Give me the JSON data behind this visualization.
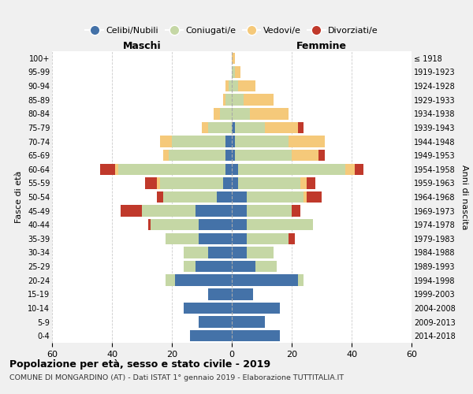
{
  "age_groups": [
    "100+",
    "95-99",
    "90-94",
    "85-89",
    "80-84",
    "75-79",
    "70-74",
    "65-69",
    "60-64",
    "55-59",
    "50-54",
    "45-49",
    "40-44",
    "35-39",
    "30-34",
    "25-29",
    "20-24",
    "15-19",
    "10-14",
    "5-9",
    "0-4"
  ],
  "birth_years": [
    "≤ 1918",
    "1919-1923",
    "1924-1928",
    "1929-1933",
    "1934-1938",
    "1939-1943",
    "1944-1948",
    "1949-1953",
    "1954-1958",
    "1959-1963",
    "1964-1968",
    "1969-1973",
    "1974-1978",
    "1979-1983",
    "1984-1988",
    "1989-1993",
    "1994-1998",
    "1999-2003",
    "2004-2008",
    "2009-2013",
    "2014-2018"
  ],
  "maschi": {
    "celibi": [
      0,
      0,
      0,
      0,
      0,
      0,
      2,
      2,
      2,
      3,
      5,
      12,
      11,
      11,
      8,
      12,
      19,
      8,
      16,
      11,
      14
    ],
    "coniugati": [
      0,
      0,
      1,
      2,
      4,
      8,
      18,
      19,
      36,
      21,
      18,
      18,
      16,
      11,
      8,
      4,
      3,
      0,
      0,
      0,
      0
    ],
    "vedovi": [
      0,
      0,
      1,
      1,
      2,
      2,
      4,
      2,
      1,
      1,
      0,
      0,
      0,
      0,
      0,
      0,
      0,
      0,
      0,
      0,
      0
    ],
    "divorziati": [
      0,
      0,
      0,
      0,
      0,
      0,
      0,
      0,
      5,
      4,
      2,
      7,
      1,
      0,
      0,
      0,
      0,
      0,
      0,
      0,
      0
    ]
  },
  "femmine": {
    "nubili": [
      0,
      0,
      0,
      0,
      0,
      1,
      1,
      1,
      2,
      2,
      5,
      5,
      5,
      5,
      5,
      8,
      22,
      7,
      16,
      11,
      16
    ],
    "coniugate": [
      0,
      1,
      2,
      4,
      6,
      10,
      18,
      19,
      36,
      21,
      19,
      15,
      22,
      14,
      9,
      7,
      2,
      0,
      0,
      0,
      0
    ],
    "vedove": [
      1,
      2,
      6,
      10,
      13,
      11,
      12,
      9,
      3,
      2,
      1,
      0,
      0,
      0,
      0,
      0,
      0,
      0,
      0,
      0,
      0
    ],
    "divorziate": [
      0,
      0,
      0,
      0,
      0,
      2,
      0,
      2,
      3,
      3,
      5,
      3,
      0,
      2,
      0,
      0,
      0,
      0,
      0,
      0,
      0
    ]
  },
  "colors": {
    "celibi": "#4472a8",
    "coniugati": "#c5d7a5",
    "vedovi": "#f5c97a",
    "divorziati": "#c0392b"
  },
  "xlim": 60,
  "title": "Popolazione per età, sesso e stato civile - 2019",
  "subtitle": "COMUNE DI MONGARDINO (AT) - Dati ISTAT 1° gennaio 2019 - Elaborazione TUTTITALIA.IT",
  "ylabel_left": "Fasce di età",
  "ylabel_right": "Anni di nascita",
  "xlabel_left": "Maschi",
  "xlabel_right": "Femmine",
  "bg_color": "#f0f0f0",
  "plot_bg": "#ffffff"
}
